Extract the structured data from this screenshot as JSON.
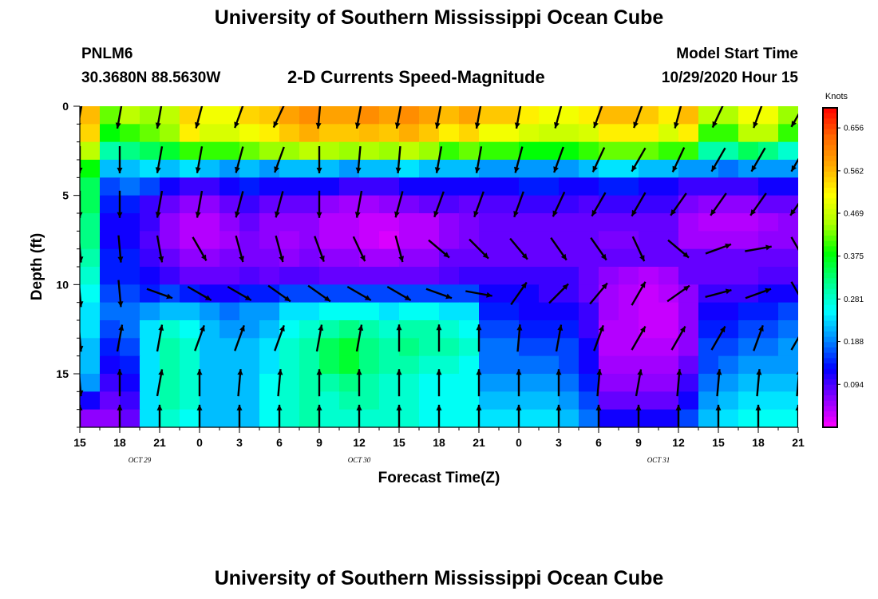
{
  "header": {
    "title": "University of Southern Mississippi Ocean Cube",
    "station_id": "PNLM6",
    "station_coords": "30.3680N 88.5630W",
    "model_start_label": "Model Start Time",
    "model_start_value": "10/29/2020 Hour 15"
  },
  "footer": {
    "title": "University of Southern Mississippi Ocean Cube"
  },
  "chart_data": {
    "type": "heatmap",
    "title": "2-D Currents Speed-Magnitude",
    "xlabel": "Forecast Time(Z)",
    "ylabel": "Depth (ft)",
    "x_ticks": [
      "15",
      "18",
      "21",
      "0",
      "3",
      "6",
      "9",
      "12",
      "15",
      "18",
      "21",
      "0",
      "3",
      "6",
      "9",
      "12",
      "15",
      "18",
      "21"
    ],
    "x_date_labels": [
      {
        "label": "OCT  29",
        "at_tick": 1.5
      },
      {
        "label": "OCT  30",
        "at_tick": 7
      },
      {
        "label": "OCT  31",
        "at_tick": 14.5
      }
    ],
    "y_ticks": [
      "0",
      "5",
      "10",
      "15"
    ],
    "ylim": [
      0,
      18
    ],
    "y_inverted": true,
    "colorbar": {
      "unit": "Knots",
      "ticks": [
        "0.656",
        "0.562",
        "0.469",
        "0.375",
        "0.281",
        "0.188",
        "0.094"
      ],
      "range": [
        0.0,
        0.7
      ],
      "colors": [
        "#ff00ff",
        "#8800ff",
        "#0000ff",
        "#0088ff",
        "#00ffff",
        "#00ff88",
        "#00ff00",
        "#aaff00",
        "#ffff00",
        "#ffaa00",
        "#ff6600",
        "#ff0000"
      ]
    },
    "grid": false,
    "speed_columns": 36,
    "depth_rows": 18,
    "speed_knots": [
      [
        0.56,
        0.42,
        0.46,
        0.44,
        0.46,
        0.54,
        0.5,
        0.5,
        0.54,
        0.55,
        0.58,
        0.6,
        0.58,
        0.58,
        0.6,
        0.58,
        0.6,
        0.58,
        0.56,
        0.58,
        0.55,
        0.55,
        0.52,
        0.5,
        0.5,
        0.52,
        0.56,
        0.56,
        0.55,
        0.52,
        0.56,
        0.46,
        0.45,
        0.5,
        0.5,
        0.44
      ],
      [
        0.54,
        0.38,
        0.4,
        0.42,
        0.44,
        0.52,
        0.48,
        0.48,
        0.5,
        0.52,
        0.55,
        0.57,
        0.55,
        0.55,
        0.56,
        0.55,
        0.57,
        0.55,
        0.52,
        0.54,
        0.5,
        0.5,
        0.48,
        0.47,
        0.47,
        0.48,
        0.52,
        0.52,
        0.52,
        0.48,
        0.52,
        0.4,
        0.4,
        0.46,
        0.46,
        0.4
      ],
      [
        0.46,
        0.3,
        0.32,
        0.34,
        0.36,
        0.4,
        0.4,
        0.4,
        0.42,
        0.44,
        0.44,
        0.46,
        0.45,
        0.44,
        0.45,
        0.44,
        0.46,
        0.44,
        0.4,
        0.42,
        0.4,
        0.4,
        0.38,
        0.38,
        0.38,
        0.4,
        0.42,
        0.42,
        0.42,
        0.4,
        0.4,
        0.3,
        0.3,
        0.34,
        0.32,
        0.28
      ],
      [
        0.38,
        0.22,
        0.22,
        0.24,
        0.22,
        0.24,
        0.22,
        0.2,
        0.22,
        0.2,
        0.22,
        0.22,
        0.22,
        0.2,
        0.22,
        0.22,
        0.24,
        0.22,
        0.22,
        0.22,
        0.2,
        0.2,
        0.2,
        0.2,
        0.2,
        0.22,
        0.24,
        0.24,
        0.22,
        0.22,
        0.2,
        0.2,
        0.18,
        0.2,
        0.2,
        0.2
      ],
      [
        0.34,
        0.16,
        0.18,
        0.16,
        0.12,
        0.1,
        0.1,
        0.12,
        0.14,
        0.12,
        0.12,
        0.12,
        0.12,
        0.1,
        0.1,
        0.1,
        0.12,
        0.12,
        0.12,
        0.12,
        0.12,
        0.12,
        0.14,
        0.14,
        0.12,
        0.12,
        0.14,
        0.14,
        0.12,
        0.12,
        0.1,
        0.1,
        0.1,
        0.1,
        0.12,
        0.12
      ],
      [
        0.34,
        0.14,
        0.14,
        0.1,
        0.08,
        0.06,
        0.06,
        0.08,
        0.1,
        0.08,
        0.08,
        0.08,
        0.06,
        0.05,
        0.05,
        0.06,
        0.07,
        0.08,
        0.09,
        0.08,
        0.09,
        0.09,
        0.1,
        0.1,
        0.1,
        0.09,
        0.1,
        0.1,
        0.1,
        0.1,
        0.07,
        0.06,
        0.06,
        0.06,
        0.08,
        0.08
      ],
      [
        0.32,
        0.12,
        0.12,
        0.1,
        0.06,
        0.04,
        0.04,
        0.06,
        0.08,
        0.06,
        0.06,
        0.06,
        0.04,
        0.04,
        0.03,
        0.03,
        0.04,
        0.04,
        0.06,
        0.07,
        0.08,
        0.08,
        0.08,
        0.08,
        0.08,
        0.08,
        0.08,
        0.08,
        0.08,
        0.08,
        0.05,
        0.04,
        0.04,
        0.04,
        0.05,
        0.06
      ],
      [
        0.32,
        0.12,
        0.12,
        0.09,
        0.06,
        0.04,
        0.04,
        0.05,
        0.07,
        0.06,
        0.05,
        0.06,
        0.04,
        0.04,
        0.03,
        0.02,
        0.04,
        0.04,
        0.06,
        0.07,
        0.08,
        0.08,
        0.08,
        0.08,
        0.08,
        0.08,
        0.07,
        0.07,
        0.08,
        0.08,
        0.05,
        0.05,
        0.05,
        0.05,
        0.06,
        0.06
      ],
      [
        0.3,
        0.14,
        0.14,
        0.1,
        0.08,
        0.06,
        0.06,
        0.07,
        0.07,
        0.07,
        0.06,
        0.07,
        0.06,
        0.06,
        0.05,
        0.05,
        0.06,
        0.06,
        0.08,
        0.08,
        0.08,
        0.08,
        0.08,
        0.08,
        0.08,
        0.08,
        0.08,
        0.08,
        0.08,
        0.08,
        0.08,
        0.08,
        0.08,
        0.08,
        0.08,
        0.08
      ],
      [
        0.28,
        0.14,
        0.14,
        0.12,
        0.1,
        0.08,
        0.08,
        0.08,
        0.09,
        0.08,
        0.09,
        0.09,
        0.08,
        0.08,
        0.08,
        0.08,
        0.08,
        0.08,
        0.09,
        0.1,
        0.1,
        0.1,
        0.1,
        0.1,
        0.1,
        0.08,
        0.06,
        0.05,
        0.04,
        0.05,
        0.08,
        0.08,
        0.08,
        0.08,
        0.09,
        0.09
      ],
      [
        0.26,
        0.16,
        0.16,
        0.14,
        0.16,
        0.14,
        0.12,
        0.12,
        0.14,
        0.14,
        0.16,
        0.16,
        0.16,
        0.16,
        0.16,
        0.16,
        0.16,
        0.16,
        0.16,
        0.16,
        0.12,
        0.12,
        0.12,
        0.1,
        0.1,
        0.08,
        0.05,
        0.04,
        0.03,
        0.04,
        0.06,
        0.1,
        0.1,
        0.1,
        0.12,
        0.12
      ],
      [
        0.24,
        0.18,
        0.18,
        0.2,
        0.22,
        0.22,
        0.2,
        0.18,
        0.2,
        0.2,
        0.24,
        0.24,
        0.26,
        0.26,
        0.26,
        0.24,
        0.26,
        0.26,
        0.24,
        0.24,
        0.14,
        0.14,
        0.12,
        0.12,
        0.12,
        0.1,
        0.05,
        0.04,
        0.03,
        0.03,
        0.06,
        0.12,
        0.12,
        0.14,
        0.14,
        0.16
      ],
      [
        0.24,
        0.16,
        0.18,
        0.24,
        0.28,
        0.26,
        0.22,
        0.2,
        0.2,
        0.22,
        0.26,
        0.28,
        0.3,
        0.32,
        0.3,
        0.28,
        0.3,
        0.3,
        0.28,
        0.26,
        0.16,
        0.16,
        0.14,
        0.14,
        0.14,
        0.1,
        0.04,
        0.04,
        0.03,
        0.03,
        0.06,
        0.14,
        0.14,
        0.16,
        0.16,
        0.18
      ],
      [
        0.22,
        0.14,
        0.16,
        0.24,
        0.3,
        0.28,
        0.22,
        0.22,
        0.22,
        0.24,
        0.28,
        0.3,
        0.34,
        0.36,
        0.32,
        0.3,
        0.32,
        0.3,
        0.3,
        0.28,
        0.18,
        0.18,
        0.16,
        0.16,
        0.16,
        0.12,
        0.04,
        0.04,
        0.04,
        0.04,
        0.06,
        0.16,
        0.16,
        0.18,
        0.18,
        0.2
      ],
      [
        0.22,
        0.12,
        0.14,
        0.24,
        0.3,
        0.28,
        0.22,
        0.22,
        0.22,
        0.24,
        0.28,
        0.3,
        0.34,
        0.36,
        0.32,
        0.3,
        0.3,
        0.28,
        0.28,
        0.26,
        0.18,
        0.18,
        0.18,
        0.18,
        0.16,
        0.12,
        0.05,
        0.05,
        0.05,
        0.05,
        0.08,
        0.16,
        0.18,
        0.2,
        0.2,
        0.2
      ],
      [
        0.2,
        0.1,
        0.12,
        0.24,
        0.3,
        0.28,
        0.22,
        0.22,
        0.22,
        0.26,
        0.28,
        0.3,
        0.3,
        0.32,
        0.3,
        0.28,
        0.28,
        0.26,
        0.26,
        0.26,
        0.2,
        0.2,
        0.2,
        0.2,
        0.18,
        0.14,
        0.06,
        0.06,
        0.06,
        0.06,
        0.1,
        0.18,
        0.2,
        0.22,
        0.22,
        0.22
      ],
      [
        0.12,
        0.08,
        0.1,
        0.24,
        0.3,
        0.28,
        0.22,
        0.22,
        0.22,
        0.26,
        0.28,
        0.3,
        0.28,
        0.3,
        0.3,
        0.28,
        0.28,
        0.26,
        0.26,
        0.26,
        0.22,
        0.22,
        0.22,
        0.22,
        0.2,
        0.16,
        0.08,
        0.08,
        0.08,
        0.08,
        0.12,
        0.2,
        0.22,
        0.24,
        0.24,
        0.24
      ],
      [
        0.06,
        0.06,
        0.08,
        0.24,
        0.28,
        0.26,
        0.22,
        0.22,
        0.22,
        0.26,
        0.28,
        0.3,
        0.28,
        0.28,
        0.28,
        0.28,
        0.28,
        0.26,
        0.26,
        0.26,
        0.24,
        0.24,
        0.24,
        0.24,
        0.22,
        0.18,
        0.12,
        0.12,
        0.12,
        0.12,
        0.16,
        0.22,
        0.24,
        0.26,
        0.26,
        0.26
      ]
    ],
    "vector_rows_depth_ft": [
      0.5,
      3.0,
      5.5,
      8.0,
      10.5,
      13.0,
      15.5,
      17.5
    ],
    "vector_columns": 19,
    "vector_direction_deg": [
      [
        190,
        190,
        190,
        195,
        200,
        205,
        185,
        190,
        190,
        190,
        190,
        190,
        195,
        200,
        200,
        195,
        205,
        200,
        210
      ],
      [
        180,
        180,
        190,
        190,
        195,
        200,
        180,
        185,
        185,
        190,
        190,
        195,
        200,
        205,
        210,
        205,
        210,
        210,
        210
      ],
      [
        180,
        180,
        190,
        190,
        195,
        195,
        180,
        190,
        195,
        200,
        200,
        200,
        205,
        210,
        210,
        215,
        215,
        215,
        215
      ],
      [
        175,
        175,
        170,
        150,
        165,
        165,
        160,
        155,
        165,
        130,
        135,
        140,
        145,
        145,
        155,
        130,
        70,
        80,
        150
      ],
      [
        175,
        175,
        110,
        120,
        120,
        125,
        125,
        120,
        120,
        110,
        100,
        35,
        45,
        40,
        30,
        55,
        75,
        70,
        150
      ],
      [
        175,
        10,
        10,
        20,
        20,
        20,
        10,
        10,
        0,
        0,
        0,
        5,
        10,
        20,
        30,
        30,
        30,
        20,
        30
      ],
      [
        175,
        0,
        10,
        0,
        5,
        5,
        0,
        0,
        0,
        0,
        0,
        0,
        0,
        5,
        10,
        5,
        5,
        5,
        5
      ],
      [
        0,
        0,
        0,
        0,
        0,
        0,
        0,
        0,
        0,
        0,
        0,
        0,
        0,
        0,
        0,
        0,
        0,
        0,
        0
      ]
    ]
  }
}
